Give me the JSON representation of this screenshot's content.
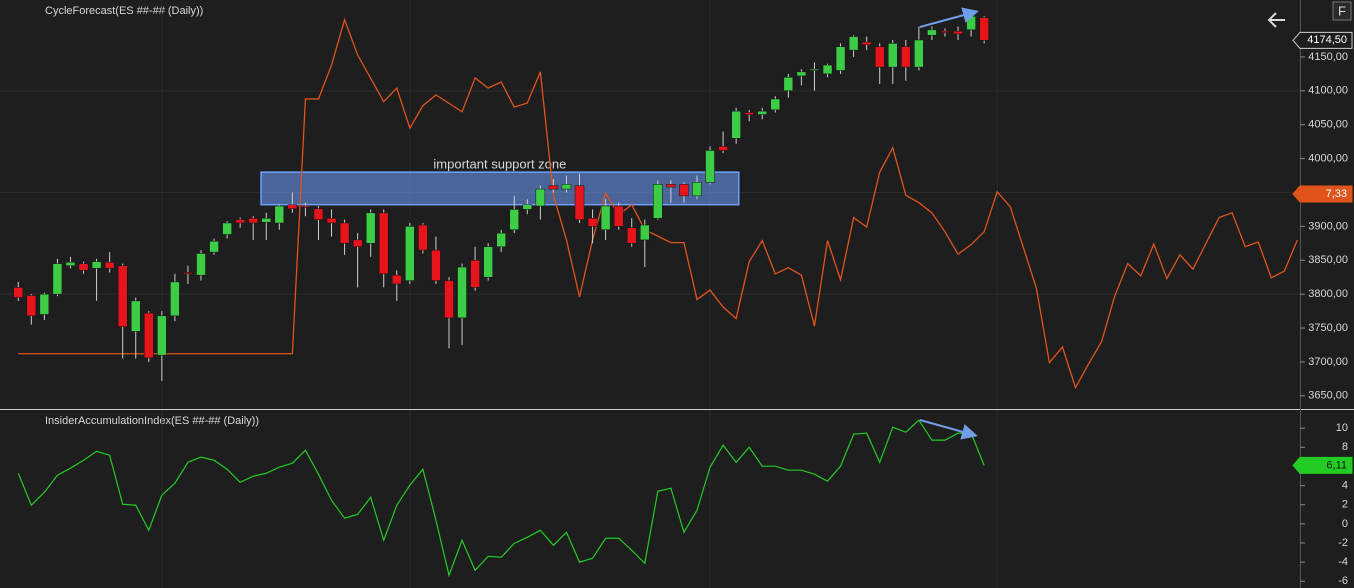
{
  "chart_data": [
    {
      "type": "candlestick",
      "title": "CycleForecast(ES ##-## (Daily))",
      "xlim": [
        -1.4,
        98.2
      ],
      "ylim": [
        3632,
        4234
      ],
      "yticks": [
        {
          "value": 3650,
          "label": "3650,00"
        },
        {
          "value": 3700,
          "label": "3700,00"
        },
        {
          "value": 3750,
          "label": "3750,00"
        },
        {
          "value": 3800,
          "label": "3800,00"
        },
        {
          "value": 3850,
          "label": "3850,00"
        },
        {
          "value": 3900,
          "label": "3900,00"
        },
        {
          "value": 3950,
          "label": "3950,00"
        },
        {
          "value": 4000,
          "label": "4000,00"
        },
        {
          "value": 4050,
          "label": "4050,00"
        },
        {
          "value": 4100,
          "label": "4100,00"
        },
        {
          "value": 4150,
          "label": "4150,00"
        }
      ],
      "hgrid": [
        3800,
        3950,
        4100
      ],
      "xgrid": [
        11,
        30,
        53,
        75
      ],
      "up_color": "#3dcc46",
      "down_color": "#e8141c",
      "open": [
        3810,
        3798,
        3770,
        3800,
        3842,
        3845,
        3838,
        3847,
        3842,
        3745,
        3772,
        3710,
        3768,
        3832,
        3828,
        3862,
        3888,
        3910,
        3912,
        3906,
        3905,
        3932,
        3930,
        3926,
        3912,
        3905,
        3880,
        3875,
        3920,
        3828,
        3820,
        3902,
        3865,
        3820,
        3765,
        3850,
        3825,
        3870,
        3895,
        3925,
        3930,
        3960,
        3955,
        3960,
        3912,
        3895,
        3930,
        3898,
        3880,
        3912,
        3962,
        3962,
        3945,
        3965,
        4018,
        4030,
        4068,
        4065,
        4072,
        4100,
        4122,
        4130,
        4125,
        4130,
        4160,
        4172,
        4165,
        4135,
        4165,
        4135,
        4182,
        4188,
        4188,
        4190,
        4208
      ],
      "high": [
        3818,
        3800,
        3802,
        3852,
        3855,
        3848,
        3852,
        3862,
        3845,
        3795,
        3775,
        3775,
        3830,
        3842,
        3865,
        3882,
        3908,
        3913,
        3915,
        3920,
        3932,
        3950,
        3935,
        3930,
        3925,
        3910,
        3890,
        3925,
        3925,
        3835,
        3905,
        3905,
        3885,
        3825,
        3845,
        3870,
        3875,
        3895,
        3945,
        3940,
        3960,
        3970,
        3975,
        3978,
        3925,
        3940,
        3935,
        3912,
        3910,
        3968,
        3968,
        3965,
        3975,
        4018,
        4040,
        4075,
        4072,
        4075,
        4092,
        4125,
        4132,
        4142,
        4140,
        4170,
        4182,
        4180,
        4170,
        4175,
        4175,
        4195,
        4195,
        4192,
        4195,
        4212,
        4210
      ],
      "low": [
        3790,
        3755,
        3762,
        3797,
        3838,
        3830,
        3790,
        3832,
        3705,
        3705,
        3700,
        3672,
        3760,
        3815,
        3820,
        3858,
        3882,
        3898,
        3880,
        3880,
        3895,
        3920,
        3915,
        3880,
        3885,
        3858,
        3810,
        3855,
        3810,
        3790,
        3815,
        3860,
        3815,
        3720,
        3725,
        3805,
        3820,
        3862,
        3890,
        3918,
        3910,
        3950,
        3950,
        3905,
        3875,
        3880,
        3895,
        3870,
        3840,
        3910,
        3935,
        3935,
        3940,
        3962,
        4008,
        4022,
        4055,
        4058,
        4068,
        4090,
        4108,
        4100,
        4120,
        4125,
        4150,
        4160,
        4110,
        4110,
        4115,
        4130,
        4175,
        4180,
        4175,
        4180,
        4170
      ],
      "close": [
        3795,
        3768,
        3800,
        3845,
        3847,
        3835,
        3848,
        3838,
        3752,
        3790,
        3706,
        3768,
        3818,
        3830,
        3860,
        3878,
        3905,
        3905,
        3905,
        3912,
        3930,
        3926,
        3928,
        3910,
        3905,
        3875,
        3870,
        3920,
        3830,
        3815,
        3900,
        3865,
        3820,
        3765,
        3840,
        3810,
        3870,
        3890,
        3925,
        3932,
        3955,
        3955,
        3962,
        3910,
        3900,
        3930,
        3900,
        3875,
        3902,
        3962,
        3958,
        3945,
        3965,
        4012,
        4012,
        4070,
        4065,
        4070,
        4088,
        4120,
        4128,
        4132,
        4138,
        4165,
        4180,
        4168,
        4135,
        4170,
        4135,
        4175,
        4190,
        4186,
        4184,
        4210,
        4174.5
      ],
      "last_price": {
        "value": 4174.5,
        "label": "4174,50"
      },
      "overlay": {
        "color": "#e0541b",
        "last_label": "7,33",
        "x": [
          0,
          21,
          22,
          23,
          24,
          25,
          26,
          28,
          29,
          30,
          31,
          32,
          34,
          35,
          36,
          37,
          38,
          39,
          40,
          41,
          42,
          43,
          44,
          45,
          46,
          47,
          48,
          50,
          51,
          52,
          53,
          54,
          55,
          56,
          57,
          58,
          59,
          60,
          61,
          62,
          63,
          64,
          65,
          66,
          67,
          68,
          69,
          70,
          71,
          72,
          73,
          74,
          75,
          76,
          78,
          79,
          80,
          81,
          82,
          83,
          84,
          85,
          86,
          87,
          88,
          89,
          90,
          92,
          93,
          94,
          95,
          96,
          97,
          98
        ],
        "values": [
          3712,
          3712,
          4088,
          4088,
          4138,
          4205,
          4153,
          4084,
          4104,
          4045,
          4078,
          4094,
          4069,
          4119,
          4104,
          4113,
          4076,
          4082,
          4128,
          3946,
          3880,
          3796,
          3880,
          3949,
          3917,
          3932,
          3895,
          3876,
          3876,
          3792,
          3806,
          3781,
          3764,
          3848,
          3879,
          3830,
          3839,
          3828,
          3753,
          3879,
          3821,
          3913,
          3899,
          3980,
          4016,
          3946,
          3935,
          3920,
          3892,
          3859,
          3873,
          3892,
          3951,
          3929,
          3809,
          3699,
          3722,
          3662,
          3697,
          3730,
          3797,
          3845,
          3827,
          3874,
          3823,
          3858,
          3837,
          3913,
          3920,
          3870,
          3877,
          3824,
          3834,
          3880
        ]
      },
      "zone": {
        "text": "important support zone",
        "x": [
          18.6,
          55.2
        ],
        "y": [
          3932,
          3980
        ],
        "color": "#6fa0ff"
      },
      "button": "F"
    },
    {
      "type": "line",
      "title": "InsiderAccumulationIndex(ES ##-## (Daily))",
      "xlim": [
        -1.4,
        98.2
      ],
      "ylim": [
        -6.7,
        11.9
      ],
      "yticks": [
        -6,
        -4,
        -2,
        0,
        2,
        4,
        6,
        8,
        10
      ],
      "series": [
        {
          "color": "#22cc22",
          "values": [
            5.29,
            1.95,
            3.31,
            5.08,
            5.82,
            6.65,
            7.59,
            7.18,
            2.05,
            1.95,
            -0.67,
            3.0,
            4.25,
            6.44,
            6.97,
            6.65,
            5.71,
            4.35,
            4.98,
            5.29,
            5.92,
            6.34,
            7.7,
            5.19,
            2.47,
            0.59,
            1.0,
            2.78,
            -1.71,
            1.95,
            4.04,
            5.71,
            0.38,
            -5.37,
            -1.71,
            -4.85,
            -3.39,
            -3.49,
            -2.03,
            -1.4,
            -0.67,
            -2.24,
            -0.88,
            -4.01,
            -3.59,
            -1.5,
            -1.5,
            -2.76,
            -4.12,
            3.41,
            3.73,
            -0.88,
            1.42,
            5.92,
            8.22,
            6.44,
            8.01,
            6.03,
            6.03,
            5.61,
            5.61,
            5.19,
            4.46,
            6.03,
            9.37,
            9.48,
            6.44,
            10.1,
            9.58,
            10.84,
            8.75,
            8.75,
            9.48,
            9.48,
            6.11
          ]
        }
      ],
      "last_value": {
        "value": 6.11,
        "label": "6,11"
      }
    }
  ]
}
